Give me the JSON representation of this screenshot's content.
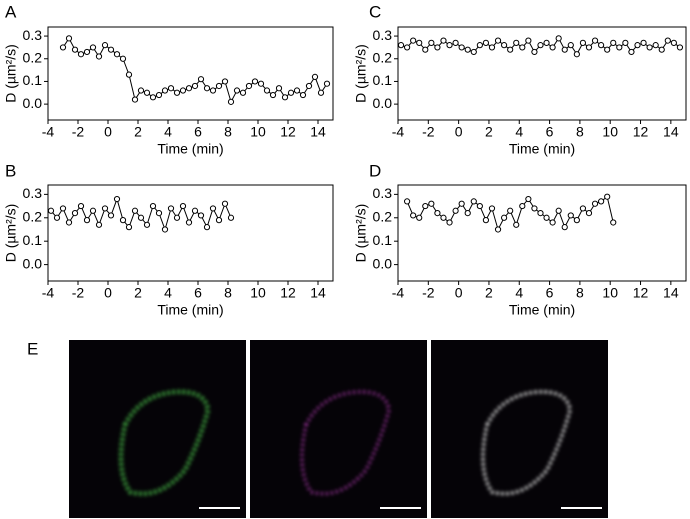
{
  "chart_data": [
    {
      "type": "line",
      "panel_label": "A",
      "xlabel": "Time (min)",
      "ylabel": "D (µm²/s)",
      "xlim": [
        -4,
        15
      ],
      "ylim": [
        -0.07,
        0.34
      ],
      "xticks": [
        -4,
        -2,
        0,
        2,
        4,
        6,
        8,
        10,
        12,
        14
      ],
      "yticks": [
        {
          "value": 0,
          "label": "0.0"
        },
        0.1,
        0.2,
        0.3
      ],
      "color": "#000000",
      "x": [
        -3.0,
        -2.6,
        -2.2,
        -1.8,
        -1.4,
        -1.0,
        -0.6,
        -0.2,
        0.2,
        0.6,
        1.0,
        1.4,
        1.8,
        2.2,
        2.6,
        3.0,
        3.4,
        3.8,
        4.2,
        4.6,
        5.0,
        5.4,
        5.8,
        6.2,
        6.6,
        7.0,
        7.4,
        7.8,
        8.2,
        8.6,
        9.0,
        9.4,
        9.8,
        10.2,
        10.6,
        11.0,
        11.4,
        11.8,
        12.2,
        12.6,
        13.0,
        13.4,
        13.8,
        14.2,
        14.6
      ],
      "values": [
        0.25,
        0.29,
        0.24,
        0.22,
        0.23,
        0.25,
        0.21,
        0.26,
        0.24,
        0.22,
        0.2,
        0.13,
        0.02,
        0.06,
        0.05,
        0.03,
        0.04,
        0.06,
        0.07,
        0.05,
        0.06,
        0.07,
        0.08,
        0.11,
        0.07,
        0.06,
        0.08,
        0.1,
        0.01,
        0.06,
        0.05,
        0.08,
        0.1,
        0.09,
        0.06,
        0.04,
        0.07,
        0.03,
        0.05,
        0.06,
        0.04,
        0.08,
        0.12,
        0.05,
        0.09
      ]
    },
    {
      "type": "line",
      "panel_label": "B",
      "xlabel": "Time (min)",
      "ylabel": "D (µm²/s)",
      "xlim": [
        -4,
        15
      ],
      "ylim": [
        -0.07,
        0.34
      ],
      "xticks": [
        -4,
        -2,
        0,
        2,
        4,
        6,
        8,
        10,
        12,
        14
      ],
      "yticks": [
        {
          "value": 0,
          "label": "0.0"
        },
        0.1,
        0.2,
        0.3
      ],
      "color": "#000000",
      "x": [
        -3.8,
        -3.4,
        -3.0,
        -2.6,
        -2.2,
        -1.8,
        -1.4,
        -1.0,
        -0.6,
        -0.2,
        0.2,
        0.6,
        1.0,
        1.4,
        1.8,
        2.2,
        2.6,
        3.0,
        3.4,
        3.8,
        4.2,
        4.6,
        5.0,
        5.4,
        5.8,
        6.2,
        6.6,
        7.0,
        7.4,
        7.8,
        8.2
      ],
      "values": [
        0.23,
        0.2,
        0.24,
        0.18,
        0.22,
        0.25,
        0.19,
        0.23,
        0.17,
        0.24,
        0.21,
        0.28,
        0.19,
        0.16,
        0.23,
        0.2,
        0.17,
        0.25,
        0.22,
        0.15,
        0.24,
        0.2,
        0.25,
        0.18,
        0.23,
        0.21,
        0.16,
        0.24,
        0.19,
        0.26,
        0.2
      ]
    },
    {
      "type": "line",
      "panel_label": "C",
      "xlabel": "Time (min)",
      "ylabel": "D (µm²/s)",
      "xlim": [
        -4,
        15
      ],
      "ylim": [
        -0.07,
        0.34
      ],
      "xticks": [
        -4,
        -2,
        0,
        2,
        4,
        6,
        8,
        10,
        12,
        14
      ],
      "yticks": [
        {
          "value": 0,
          "label": "0.0"
        },
        0.1,
        0.2,
        0.3
      ],
      "color": "#000000",
      "x": [
        -3.8,
        -3.4,
        -3.0,
        -2.6,
        -2.2,
        -1.8,
        -1.4,
        -1.0,
        -0.6,
        -0.2,
        0.2,
        0.6,
        1.0,
        1.4,
        1.8,
        2.2,
        2.6,
        3.0,
        3.4,
        3.8,
        4.2,
        4.6,
        5.0,
        5.4,
        5.8,
        6.2,
        6.6,
        7.0,
        7.4,
        7.8,
        8.2,
        8.6,
        9.0,
        9.4,
        9.8,
        10.2,
        10.6,
        11.0,
        11.4,
        11.8,
        12.2,
        12.6,
        13.0,
        13.4,
        13.8,
        14.2,
        14.6
      ],
      "values": [
        0.26,
        0.25,
        0.28,
        0.27,
        0.24,
        0.27,
        0.25,
        0.28,
        0.26,
        0.27,
        0.25,
        0.24,
        0.23,
        0.26,
        0.27,
        0.25,
        0.28,
        0.26,
        0.24,
        0.27,
        0.25,
        0.28,
        0.23,
        0.26,
        0.27,
        0.25,
        0.29,
        0.24,
        0.26,
        0.22,
        0.27,
        0.25,
        0.28,
        0.26,
        0.24,
        0.27,
        0.25,
        0.27,
        0.23,
        0.26,
        0.27,
        0.25,
        0.26,
        0.24,
        0.28,
        0.27,
        0.25
      ]
    },
    {
      "type": "line",
      "panel_label": "D",
      "xlabel": "Time (min)",
      "ylabel": "D (µm²/s)",
      "xlim": [
        -4,
        15
      ],
      "ylim": [
        -0.07,
        0.34
      ],
      "xticks": [
        -4,
        -2,
        0,
        2,
        4,
        6,
        8,
        10,
        12,
        14
      ],
      "yticks": [
        {
          "value": 0,
          "label": "0.0"
        },
        0.1,
        0.2,
        0.3
      ],
      "color": "#000000",
      "x": [
        -3.4,
        -3.0,
        -2.6,
        -2.2,
        -1.8,
        -1.4,
        -1.0,
        -0.6,
        -0.2,
        0.2,
        0.6,
        1.0,
        1.4,
        1.8,
        2.2,
        2.6,
        3.0,
        3.4,
        3.8,
        4.2,
        4.6,
        5.0,
        5.4,
        5.8,
        6.2,
        6.6,
        7.0,
        7.4,
        7.8,
        8.2,
        8.6,
        9.0,
        9.4,
        9.8,
        10.2
      ],
      "values": [
        0.27,
        0.21,
        0.2,
        0.25,
        0.26,
        0.22,
        0.2,
        0.18,
        0.23,
        0.26,
        0.22,
        0.27,
        0.25,
        0.19,
        0.24,
        0.15,
        0.2,
        0.23,
        0.17,
        0.25,
        0.28,
        0.24,
        0.22,
        0.2,
        0.18,
        0.23,
        0.16,
        0.21,
        0.19,
        0.24,
        0.22,
        0.26,
        0.27,
        0.29,
        0.18
      ]
    }
  ],
  "image_panel": {
    "label": "E"
  }
}
